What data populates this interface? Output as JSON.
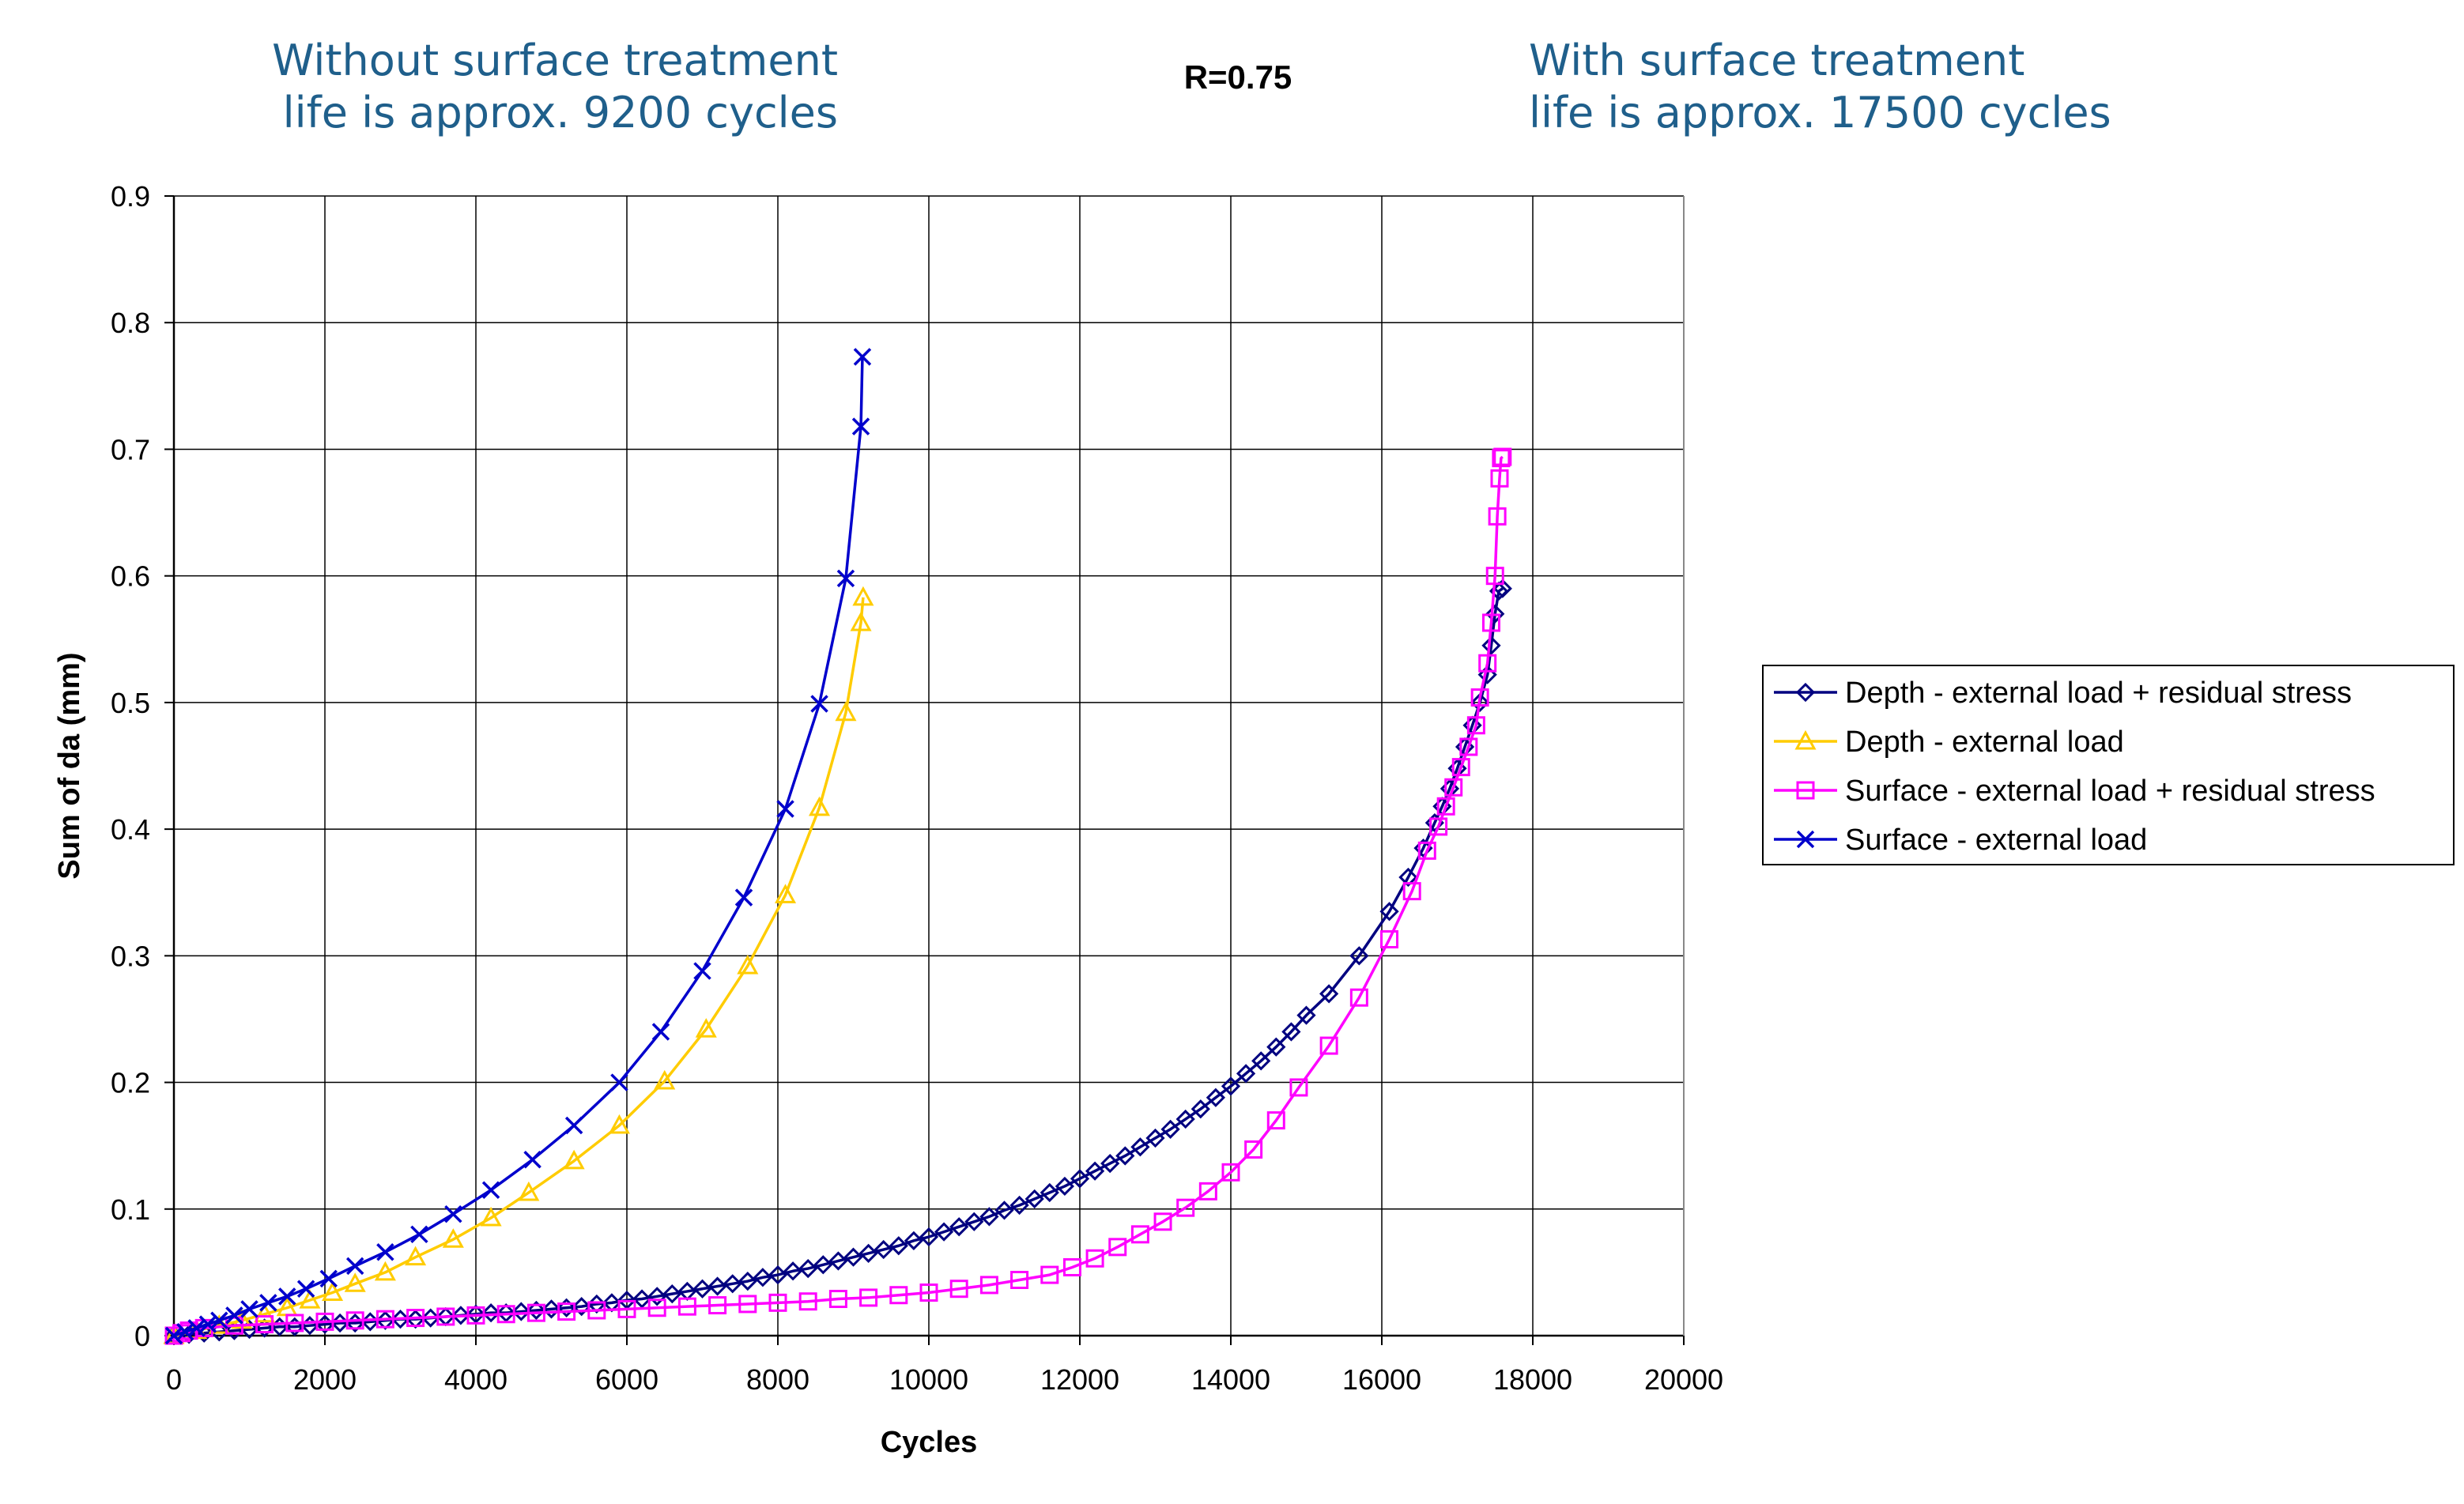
{
  "annotations": {
    "left_line1": "Without surface treatment",
    "left_line2": "life is approx. 9200 cycles",
    "center": "R=0.75",
    "right_line1": "With surface treatment",
    "right_line2": "life is approx. 17500 cycles"
  },
  "chart_data": {
    "type": "scatter",
    "title": "R=0.75",
    "xlabel": "Cycles",
    "ylabel": "Sum of da (mm)",
    "xlim": [
      0,
      20000
    ],
    "ylim": [
      0,
      0.9
    ],
    "x_ticks": [
      0,
      2000,
      4000,
      6000,
      8000,
      10000,
      12000,
      14000,
      16000,
      18000,
      20000
    ],
    "y_ticks": [
      0,
      0.1,
      0.2,
      0.3,
      0.4,
      0.5,
      0.6,
      0.7,
      0.8,
      0.9
    ],
    "grid": true,
    "legend_position": "right",
    "series": [
      {
        "name": "Depth - external load + residual stress",
        "color": "#000080",
        "marker": "diamond",
        "x": [
          0,
          200,
          400,
          600,
          800,
          1000,
          1200,
          1400,
          1600,
          1800,
          2000,
          2200,
          2400,
          2600,
          2800,
          3000,
          3200,
          3400,
          3600,
          3800,
          4000,
          4200,
          4400,
          4600,
          4800,
          5000,
          5200,
          5400,
          5600,
          5800,
          6000,
          6200,
          6400,
          6600,
          6800,
          7000,
          7200,
          7400,
          7600,
          7800,
          8000,
          8200,
          8400,
          8600,
          8800,
          9000,
          9200,
          9400,
          9600,
          9800,
          10000,
          10200,
          10400,
          10600,
          10800,
          11000,
          11200,
          11400,
          11600,
          11800,
          12000,
          12200,
          12400,
          12600,
          12800,
          13000,
          13200,
          13400,
          13600,
          13800,
          14000,
          14200,
          14400,
          14600,
          14800,
          15000,
          15300,
          15700,
          16100,
          16350,
          16550,
          16700,
          16800,
          16900,
          17000,
          17100,
          17200,
          17300,
          17400,
          17450,
          17500,
          17550,
          17600
        ],
        "y": [
          0.0,
          0.001,
          0.002,
          0.003,
          0.004,
          0.005,
          0.006,
          0.007,
          0.007,
          0.008,
          0.009,
          0.01,
          0.01,
          0.011,
          0.012,
          0.013,
          0.013,
          0.014,
          0.015,
          0.016,
          0.017,
          0.018,
          0.018,
          0.019,
          0.02,
          0.021,
          0.022,
          0.023,
          0.025,
          0.026,
          0.028,
          0.029,
          0.031,
          0.033,
          0.035,
          0.037,
          0.039,
          0.041,
          0.043,
          0.046,
          0.048,
          0.051,
          0.053,
          0.056,
          0.059,
          0.062,
          0.065,
          0.068,
          0.071,
          0.075,
          0.078,
          0.082,
          0.086,
          0.09,
          0.094,
          0.099,
          0.103,
          0.108,
          0.113,
          0.118,
          0.124,
          0.13,
          0.136,
          0.142,
          0.149,
          0.156,
          0.163,
          0.171,
          0.179,
          0.188,
          0.197,
          0.207,
          0.217,
          0.228,
          0.24,
          0.253,
          0.27,
          0.3,
          0.335,
          0.362,
          0.385,
          0.405,
          0.418,
          0.432,
          0.448,
          0.465,
          0.482,
          0.5,
          0.522,
          0.545,
          0.57,
          0.588,
          0.59
        ]
      },
      {
        "name": "Depth - external load",
        "color": "#ffcc00",
        "marker": "triangle",
        "x": [
          0,
          300,
          600,
          900,
          1200,
          1500,
          1800,
          2100,
          2400,
          2800,
          3200,
          3700,
          4200,
          4700,
          5300,
          5900,
          6500,
          7050,
          7600,
          8100,
          8550,
          8900,
          9100,
          9130
        ],
        "y": [
          0.0,
          0.004,
          0.008,
          0.012,
          0.017,
          0.022,
          0.028,
          0.034,
          0.041,
          0.05,
          0.062,
          0.076,
          0.093,
          0.113,
          0.138,
          0.166,
          0.201,
          0.242,
          0.292,
          0.348,
          0.417,
          0.492,
          0.563,
          0.583
        ]
      },
      {
        "name": "Surface - external load + residual stress",
        "color": "#ff00ff",
        "marker": "square",
        "x": [
          0,
          100,
          200,
          400,
          800,
          1200,
          1600,
          2000,
          2400,
          2800,
          3200,
          3600,
          4000,
          4400,
          4800,
          5200,
          5600,
          6000,
          6400,
          6800,
          7200,
          7600,
          8000,
          8400,
          8800,
          9200,
          9600,
          10000,
          10400,
          10800,
          11200,
          11600,
          11900,
          12200,
          12500,
          12800,
          13100,
          13400,
          13700,
          14000,
          14300,
          14600,
          14900,
          15300,
          15700,
          16100,
          16400,
          16600,
          16750,
          16850,
          16950,
          17050,
          17150,
          17250,
          17300,
          17400,
          17450,
          17500,
          17530,
          17560,
          17580,
          17600
        ],
        "y": [
          0.0,
          0.002,
          0.004,
          0.006,
          0.008,
          0.009,
          0.01,
          0.011,
          0.012,
          0.013,
          0.014,
          0.015,
          0.016,
          0.017,
          0.018,
          0.019,
          0.02,
          0.021,
          0.022,
          0.023,
          0.024,
          0.025,
          0.026,
          0.027,
          0.029,
          0.03,
          0.032,
          0.034,
          0.037,
          0.04,
          0.044,
          0.048,
          0.054,
          0.061,
          0.07,
          0.08,
          0.09,
          0.101,
          0.114,
          0.129,
          0.147,
          0.17,
          0.196,
          0.229,
          0.267,
          0.313,
          0.351,
          0.383,
          0.402,
          0.418,
          0.433,
          0.449,
          0.465,
          0.482,
          0.504,
          0.531,
          0.563,
          0.6,
          0.647,
          0.677,
          0.693,
          0.694
        ]
      },
      {
        "name": "Surface - external load",
        "color": "#0000cc",
        "marker": "x",
        "x": [
          0,
          150,
          300,
          450,
          600,
          800,
          1000,
          1250,
          1500,
          1750,
          2050,
          2400,
          2800,
          3250,
          3700,
          4200,
          4750,
          5300,
          5900,
          6450,
          7000,
          7550,
          8100,
          8550,
          8900,
          9100,
          9120
        ],
        "y": [
          0.0,
          0.003,
          0.006,
          0.009,
          0.012,
          0.016,
          0.021,
          0.026,
          0.031,
          0.037,
          0.045,
          0.055,
          0.066,
          0.08,
          0.096,
          0.115,
          0.139,
          0.166,
          0.2,
          0.24,
          0.288,
          0.346,
          0.416,
          0.499,
          0.598,
          0.718,
          0.773
        ]
      }
    ]
  }
}
